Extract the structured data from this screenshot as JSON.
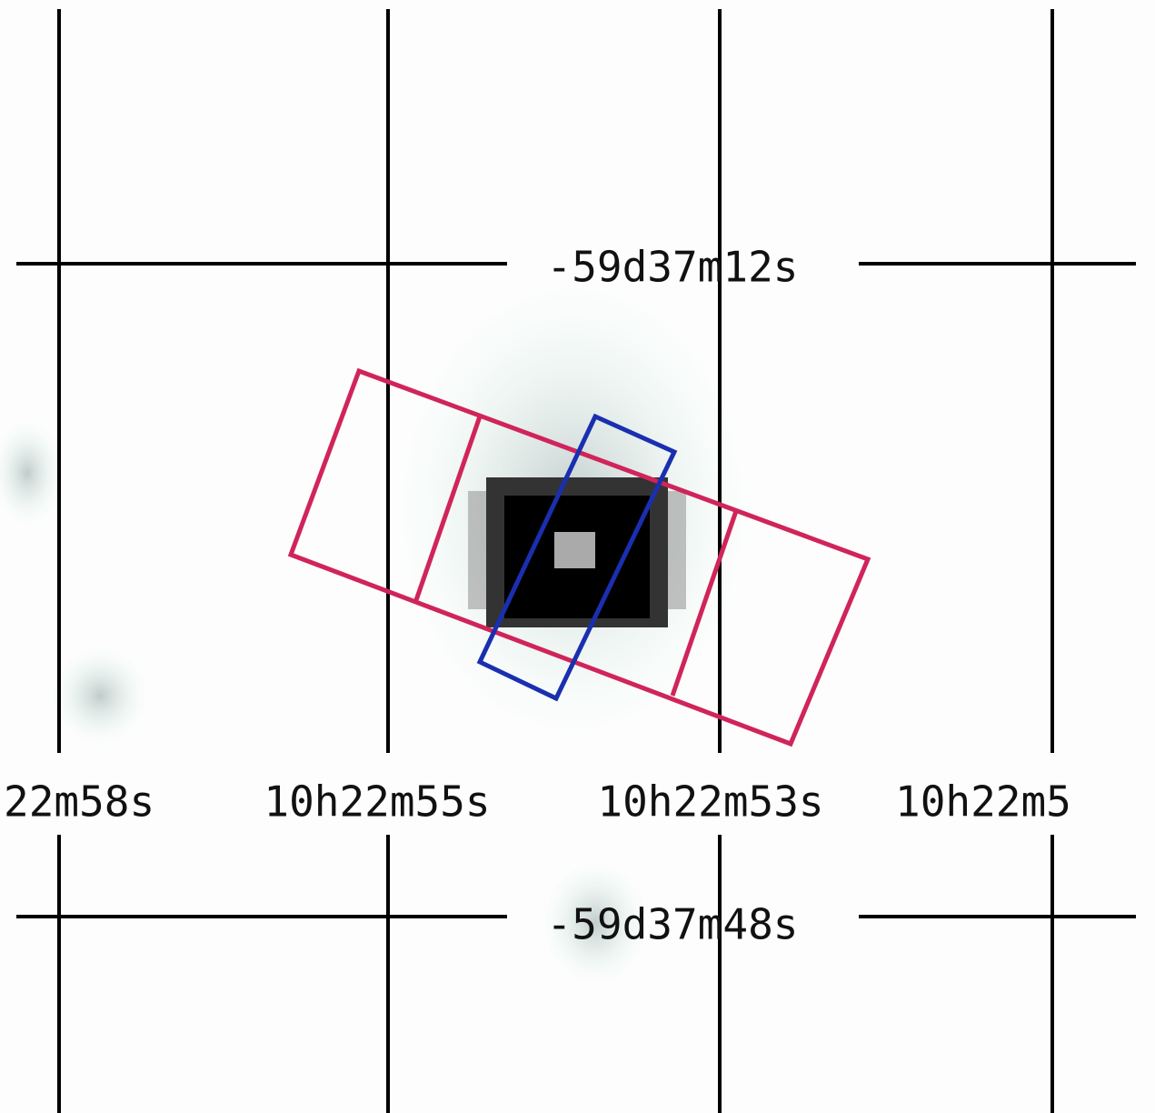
{
  "grid": {
    "dec_labels": [
      "-59d37m12s",
      "-59d37m48s"
    ],
    "ra_labels": [
      "22m58s",
      "10h22m55s",
      "10h22m53s",
      "10h22m5"
    ]
  }
}
